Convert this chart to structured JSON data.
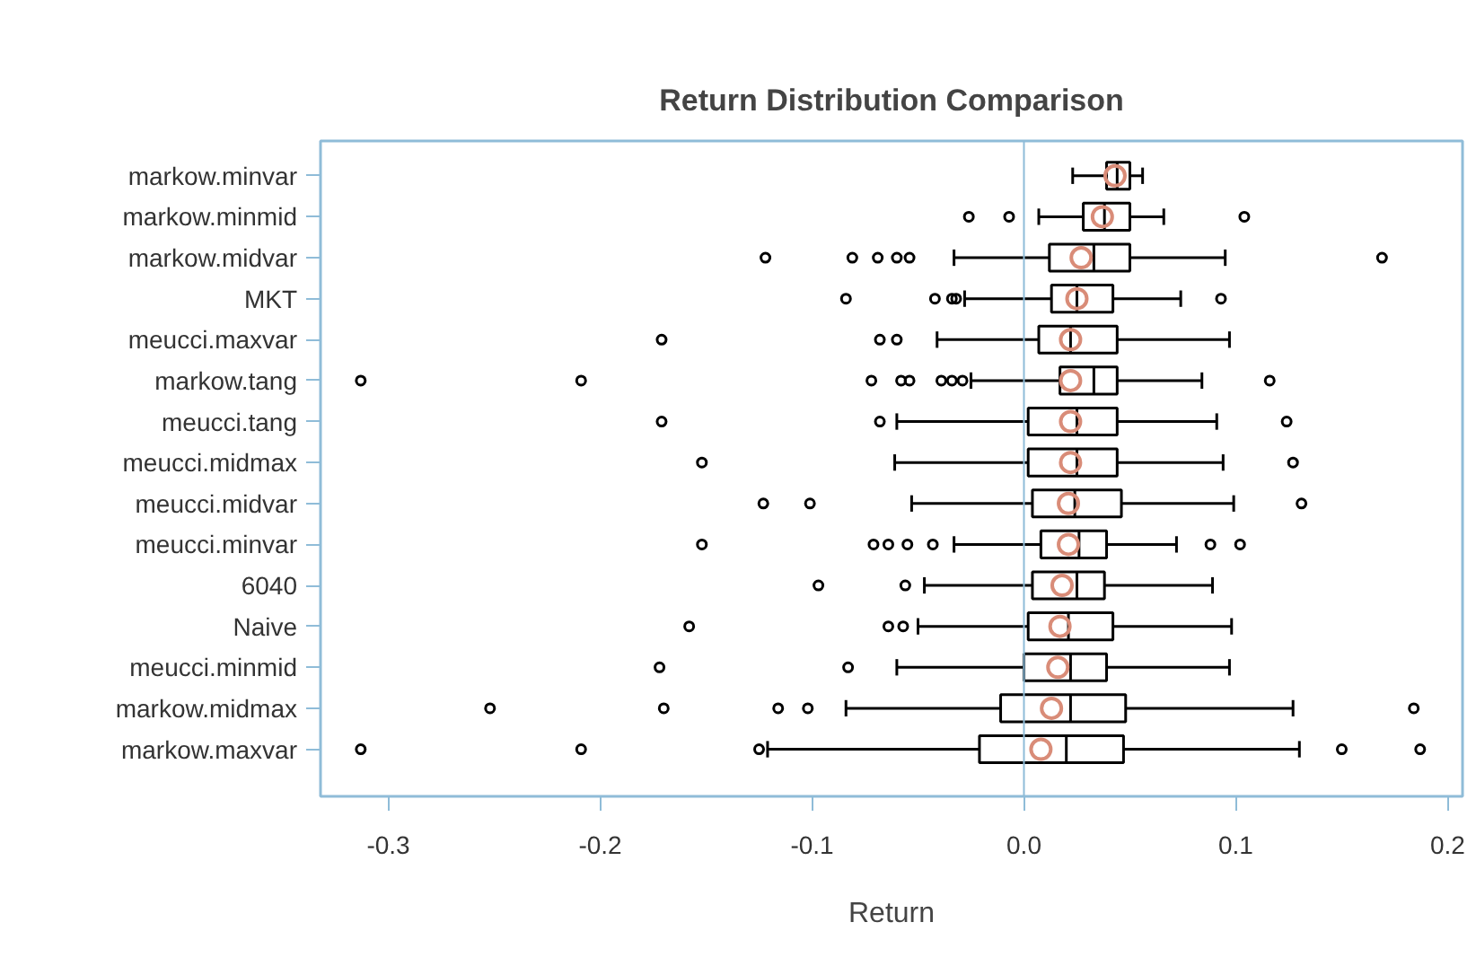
{
  "chart_data": {
    "type": "box",
    "title": "Return Distribution Comparison",
    "xlabel": "Return",
    "orientation": "horizontal",
    "categories": [
      "markow.minvar",
      "markow.minmid",
      "markow.midvar",
      "MKT",
      "meucci.maxvar",
      "markow.tang",
      "meucci.tang",
      "meucci.midmax",
      "meucci.midvar",
      "meucci.minvar",
      "6040",
      "Naive",
      "meucci.minmid",
      "markow.midmax",
      "markow.maxvar"
    ],
    "xlim": [
      -0.332,
      0.207
    ],
    "xticks": [
      {
        "value": -0.3,
        "label": "-0.3"
      },
      {
        "value": -0.2,
        "label": "-0.2"
      },
      {
        "value": -0.1,
        "label": "-0.1"
      },
      {
        "value": 0.0,
        "label": "0.0"
      },
      {
        "value": 0.1,
        "label": "0.1"
      },
      {
        "value": 0.2,
        "label": "0.2"
      }
    ],
    "grid": false,
    "ref_lines": [
      {
        "axis": "x",
        "value": 0.0,
        "label": null,
        "color": "#8fbcd8"
      }
    ],
    "series": [
      {
        "color": "#000000",
        "boxes": [
          {
            "low": 0.023,
            "q1": 0.039,
            "median": 0.044,
            "q3": 0.05,
            "high": 0.056,
            "mean": 0.043
          },
          {
            "low": 0.007,
            "q1": 0.028,
            "median": 0.038,
            "q3": 0.05,
            "high": 0.066,
            "mean": 0.037,
            "outliers": [
              -0.026,
              -0.007,
              0.104
            ]
          },
          {
            "low": -0.033,
            "q1": 0.012,
            "median": 0.033,
            "q3": 0.05,
            "high": 0.095,
            "mean": 0.027,
            "outliers": [
              -0.122,
              -0.081,
              -0.069,
              -0.06,
              -0.054,
              0.169
            ]
          },
          {
            "low": -0.028,
            "q1": 0.013,
            "median": 0.025,
            "q3": 0.042,
            "high": 0.074,
            "mean": 0.025,
            "outliers": [
              -0.084,
              -0.042,
              -0.034,
              -0.032,
              0.093
            ]
          },
          {
            "low": -0.041,
            "q1": 0.007,
            "median": 0.022,
            "q3": 0.044,
            "high": 0.097,
            "mean": 0.022,
            "outliers": [
              -0.171,
              -0.068,
              -0.06
            ]
          },
          {
            "low": -0.025,
            "q1": 0.017,
            "median": 0.033,
            "q3": 0.044,
            "high": 0.084,
            "mean": 0.022,
            "outliers": [
              -0.313,
              -0.209,
              -0.072,
              -0.058,
              -0.054,
              -0.039,
              -0.034,
              -0.029,
              0.116
            ]
          },
          {
            "low": -0.06,
            "q1": 0.002,
            "median": 0.025,
            "q3": 0.044,
            "high": 0.091,
            "mean": 0.022,
            "outliers": [
              -0.171,
              -0.068,
              0.124
            ]
          },
          {
            "low": -0.061,
            "q1": 0.002,
            "median": 0.025,
            "q3": 0.044,
            "high": 0.094,
            "mean": 0.022,
            "outliers": [
              -0.152,
              0.127
            ]
          },
          {
            "low": -0.053,
            "q1": 0.004,
            "median": 0.024,
            "q3": 0.046,
            "high": 0.099,
            "mean": 0.021,
            "outliers": [
              -0.123,
              -0.101,
              0.131
            ]
          },
          {
            "low": -0.033,
            "q1": 0.008,
            "median": 0.026,
            "q3": 0.039,
            "high": 0.072,
            "mean": 0.021,
            "outliers": [
              -0.152,
              -0.071,
              -0.064,
              -0.055,
              -0.043,
              0.088,
              0.102
            ]
          },
          {
            "low": -0.047,
            "q1": 0.004,
            "median": 0.025,
            "q3": 0.038,
            "high": 0.089,
            "mean": 0.018,
            "outliers": [
              -0.097,
              -0.056
            ]
          },
          {
            "low": -0.05,
            "q1": 0.002,
            "median": 0.021,
            "q3": 0.042,
            "high": 0.098,
            "mean": 0.017,
            "outliers": [
              -0.158,
              -0.064,
              -0.057
            ]
          },
          {
            "low": -0.06,
            "q1": 0.0,
            "median": 0.022,
            "q3": 0.039,
            "high": 0.097,
            "mean": 0.016,
            "outliers": [
              -0.172,
              -0.083
            ]
          },
          {
            "low": -0.084,
            "q1": -0.011,
            "median": 0.022,
            "q3": 0.048,
            "high": 0.127,
            "mean": 0.013,
            "outliers": [
              -0.252,
              -0.17,
              -0.116,
              -0.102,
              0.184
            ]
          },
          {
            "low": -0.121,
            "q1": -0.021,
            "median": 0.02,
            "q3": 0.047,
            "high": 0.13,
            "mean": 0.008,
            "outliers": [
              -0.313,
              -0.209,
              -0.125,
              0.15,
              0.187
            ]
          }
        ]
      }
    ]
  }
}
